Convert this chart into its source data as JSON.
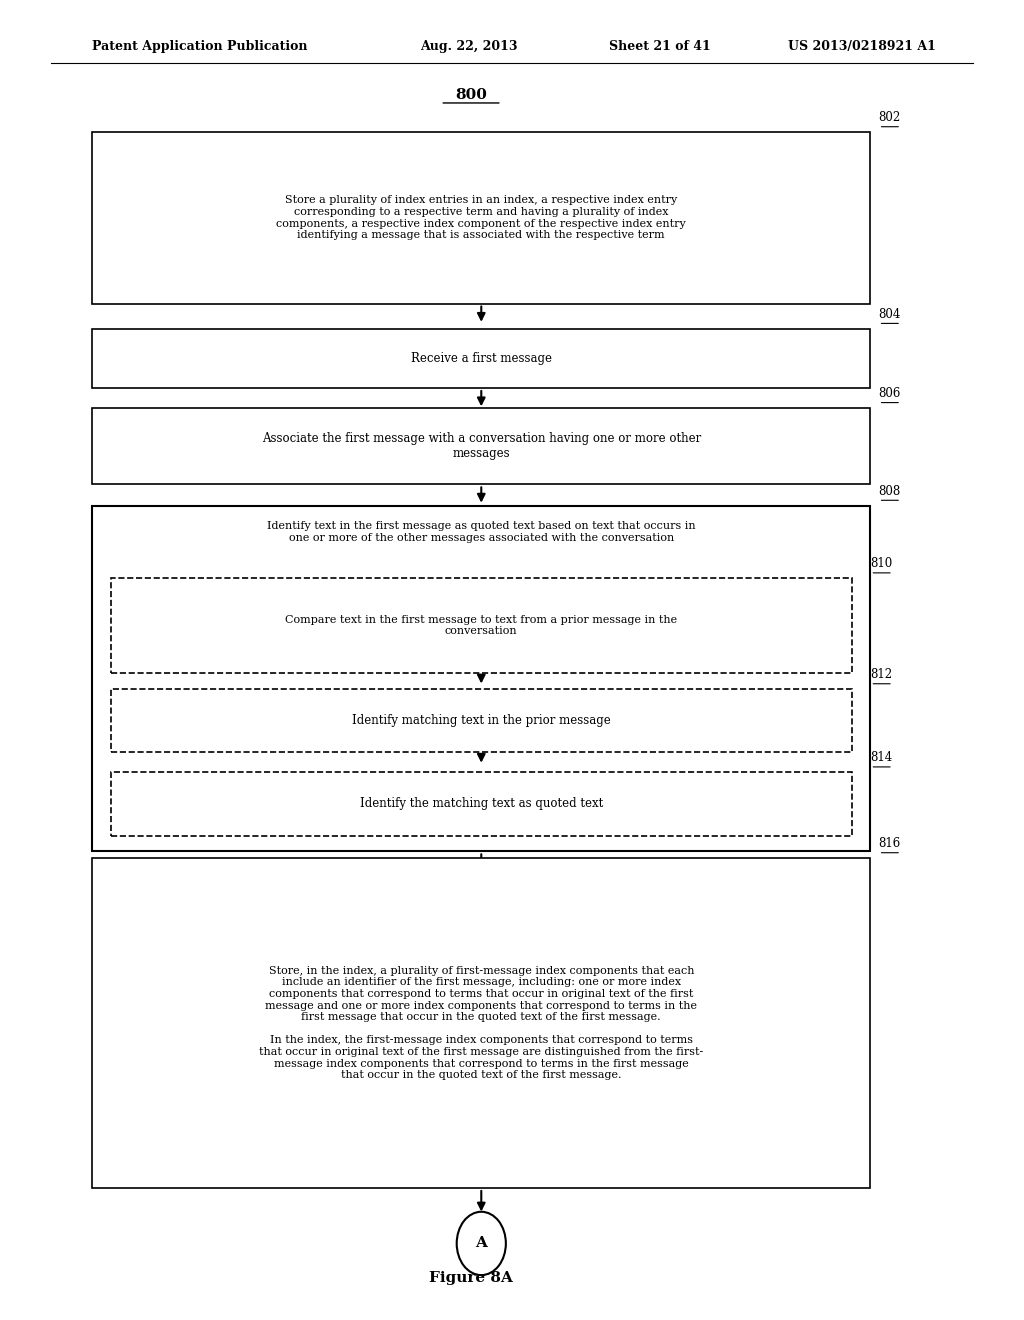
{
  "title_header": "Patent Application Publication",
  "title_date": "Aug. 22, 2013",
  "title_sheet": "Sheet 21 of 41",
  "title_patent": "US 2013/0218921 A1",
  "figure_label": "Figure 8A",
  "diagram_label": "800",
  "background_color": "#ffffff"
}
